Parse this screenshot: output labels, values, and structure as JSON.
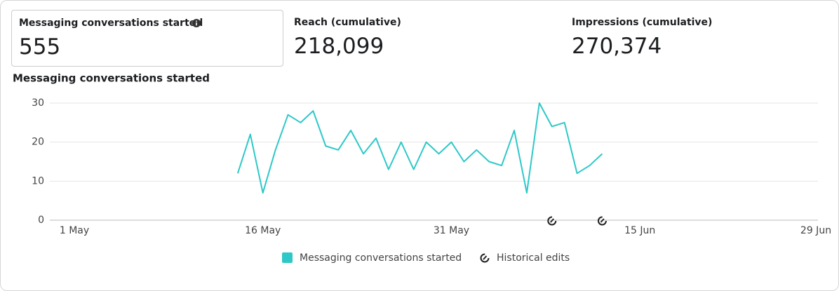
{
  "metrics": [
    {
      "label": "Messaging conversations started",
      "value": "555"
    },
    {
      "label": "Reach (cumulative)",
      "value": "218,099"
    },
    {
      "label": "Impressions (cumulative)",
      "value": "270,374"
    }
  ],
  "chart_data": {
    "type": "line",
    "title": "Messaging conversations started",
    "x": [
      "14 May",
      "15 May",
      "16 May",
      "17 May",
      "18 May",
      "19 May",
      "20 May",
      "21 May",
      "22 May",
      "23 May",
      "24 May",
      "25 May",
      "26 May",
      "27 May",
      "28 May",
      "29 May",
      "30 May",
      "31 May",
      "1 Jun",
      "2 Jun",
      "3 Jun",
      "4 Jun",
      "5 Jun",
      "6 Jun",
      "7 Jun",
      "8 Jun",
      "9 Jun",
      "10 Jun",
      "11 Jun",
      "12 Jun"
    ],
    "series": [
      {
        "name": "Messaging conversations started",
        "color": "#2ec8c8",
        "values": [
          12,
          22,
          7,
          18,
          27,
          25,
          28,
          19,
          18,
          23,
          17,
          21,
          13,
          20,
          13,
          20,
          17,
          20,
          15,
          18,
          15,
          14,
          23,
          7,
          30,
          24,
          25,
          12,
          14,
          17
        ]
      }
    ],
    "xlim": [
      "1 May",
      "29 Jun"
    ],
    "xticks": [
      "1 May",
      "16 May",
      "31 May",
      "15 Jun",
      "29 Jun"
    ],
    "ylim": [
      0,
      30
    ],
    "yticks": [
      0,
      10,
      20,
      30
    ],
    "grid": true,
    "edit_markers": [
      "8 Jun",
      "12 Jun"
    ],
    "edit_legend": "Historical edits"
  }
}
